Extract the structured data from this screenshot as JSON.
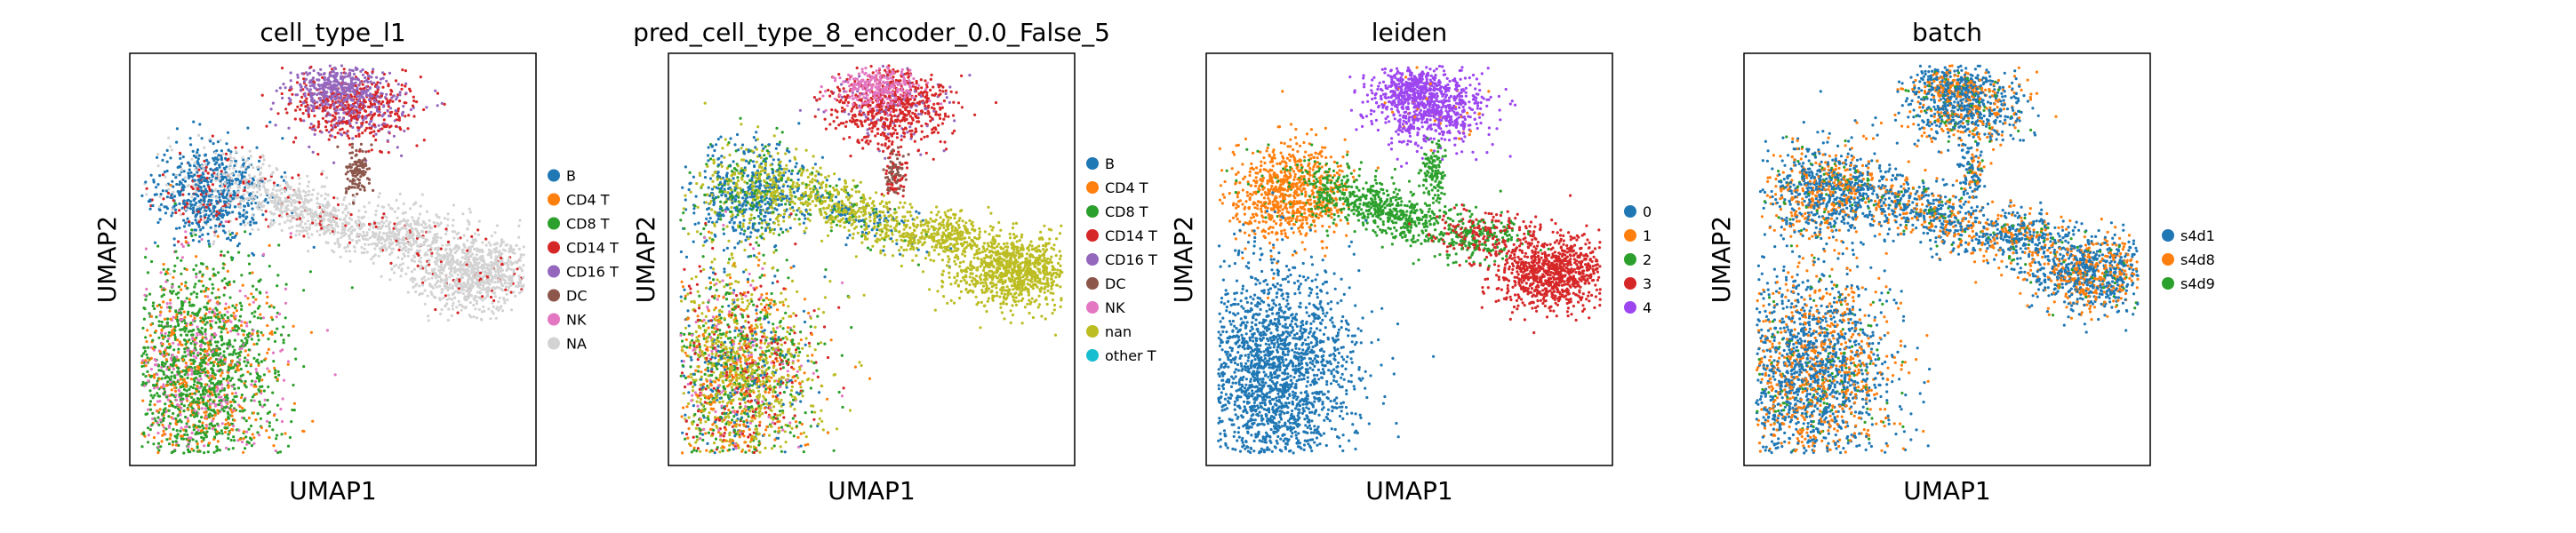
{
  "chart_data": [
    {
      "type": "scatter",
      "title": "cell_type_l1",
      "xlabel": "UMAP1",
      "ylabel": "UMAP2",
      "legend_position": "right",
      "grid": false,
      "series": [
        {
          "name": "B",
          "color": "#1f77b4"
        },
        {
          "name": "CD4 T",
          "color": "#ff7f0e"
        },
        {
          "name": "CD8 T",
          "color": "#2ca02c"
        },
        {
          "name": "CD14 T",
          "color": "#d62728"
        },
        {
          "name": "CD16 T",
          "color": "#9467bd"
        },
        {
          "name": "DC",
          "color": "#8c564b"
        },
        {
          "name": "NK",
          "color": "#e377c2"
        },
        {
          "name": "NA",
          "color": "#d3d3d3"
        }
      ]
    },
    {
      "type": "scatter",
      "title": "pred_cell_type_8_encoder_0.0_False_5",
      "xlabel": "UMAP1",
      "ylabel": "UMAP2",
      "legend_position": "right",
      "grid": false,
      "series": [
        {
          "name": "B",
          "color": "#1f77b4"
        },
        {
          "name": "CD4 T",
          "color": "#ff7f0e"
        },
        {
          "name": "CD8 T",
          "color": "#2ca02c"
        },
        {
          "name": "CD14 T",
          "color": "#d62728"
        },
        {
          "name": "CD16 T",
          "color": "#9467bd"
        },
        {
          "name": "DC",
          "color": "#8c564b"
        },
        {
          "name": "NK",
          "color": "#e377c2"
        },
        {
          "name": "nan",
          "color": "#bcbd22"
        },
        {
          "name": "other T",
          "color": "#17becf"
        }
      ]
    },
    {
      "type": "scatter",
      "title": "leiden",
      "xlabel": "UMAP1",
      "ylabel": "UMAP2",
      "legend_position": "right",
      "grid": false,
      "series": [
        {
          "name": "0",
          "color": "#1f77b4"
        },
        {
          "name": "1",
          "color": "#ff7f0e"
        },
        {
          "name": "2",
          "color": "#2ca02c"
        },
        {
          "name": "3",
          "color": "#d62728"
        },
        {
          "name": "4",
          "color": "#9d46f0"
        }
      ]
    },
    {
      "type": "scatter",
      "title": "batch",
      "xlabel": "UMAP1",
      "ylabel": "UMAP2",
      "legend_position": "right",
      "grid": false,
      "series": [
        {
          "name": "s4d1",
          "color": "#1f77b4"
        },
        {
          "name": "s4d8",
          "color": "#ff7f0e"
        },
        {
          "name": "s4d9",
          "color": "#2ca02c"
        }
      ]
    }
  ]
}
